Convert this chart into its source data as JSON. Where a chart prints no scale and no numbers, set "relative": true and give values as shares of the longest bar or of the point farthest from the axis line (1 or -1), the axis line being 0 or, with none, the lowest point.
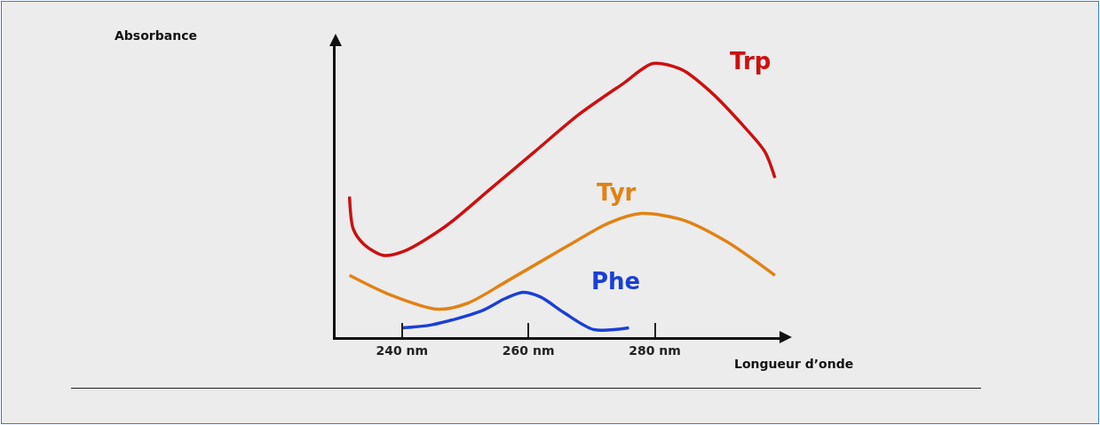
{
  "chart_data": {
    "type": "line",
    "relative": true,
    "annotations": [
      "Absorbance"
    ],
    "xlabel": "Longueur d’onde",
    "xlim": [
      229.5,
      300
    ],
    "xticks": [
      {
        "value": 240,
        "label": "240 nm"
      },
      {
        "value": 260,
        "label": "260 nm"
      },
      {
        "value": 280,
        "label": "280 nm"
      }
    ],
    "legend": false,
    "marker": "none",
    "line_style": "solid",
    "series": [
      {
        "name": "Trp",
        "color": "#cc1010",
        "x": [
          231.7,
          232.3,
          234.0,
          237.0,
          240.5,
          247.0,
          254.0,
          261.0,
          268.0,
          275.0,
          279.7,
          284.3,
          289.0,
          293.7,
          297.4,
          299.0
        ],
        "values": [
          0.514,
          0.395,
          0.339,
          0.299,
          0.316,
          0.407,
          0.542,
          0.678,
          0.814,
          0.927,
          1.0,
          0.977,
          0.893,
          0.78,
          0.678,
          0.582
        ]
      },
      {
        "name": "Tyr",
        "color": "#e08214",
        "x": [
          231.7,
          237.8,
          245.7,
          250.4,
          256.5,
          265.8,
          272.8,
          277.9,
          284.3,
          291.3,
          299.0
        ],
        "values": [
          0.226,
          0.158,
          0.102,
          0.124,
          0.203,
          0.328,
          0.418,
          0.452,
          0.429,
          0.35,
          0.226
        ]
      },
      {
        "name": "Phe",
        "color": "#1a3fd6",
        "x": [
          240,
          244.7,
          252.6,
          256.3,
          259.1,
          261.9,
          265.6,
          270.3,
          275.9
        ],
        "values": [
          0.034,
          0.045,
          0.096,
          0.141,
          0.164,
          0.147,
          0.09,
          0.028,
          0.034
        ]
      }
    ]
  }
}
